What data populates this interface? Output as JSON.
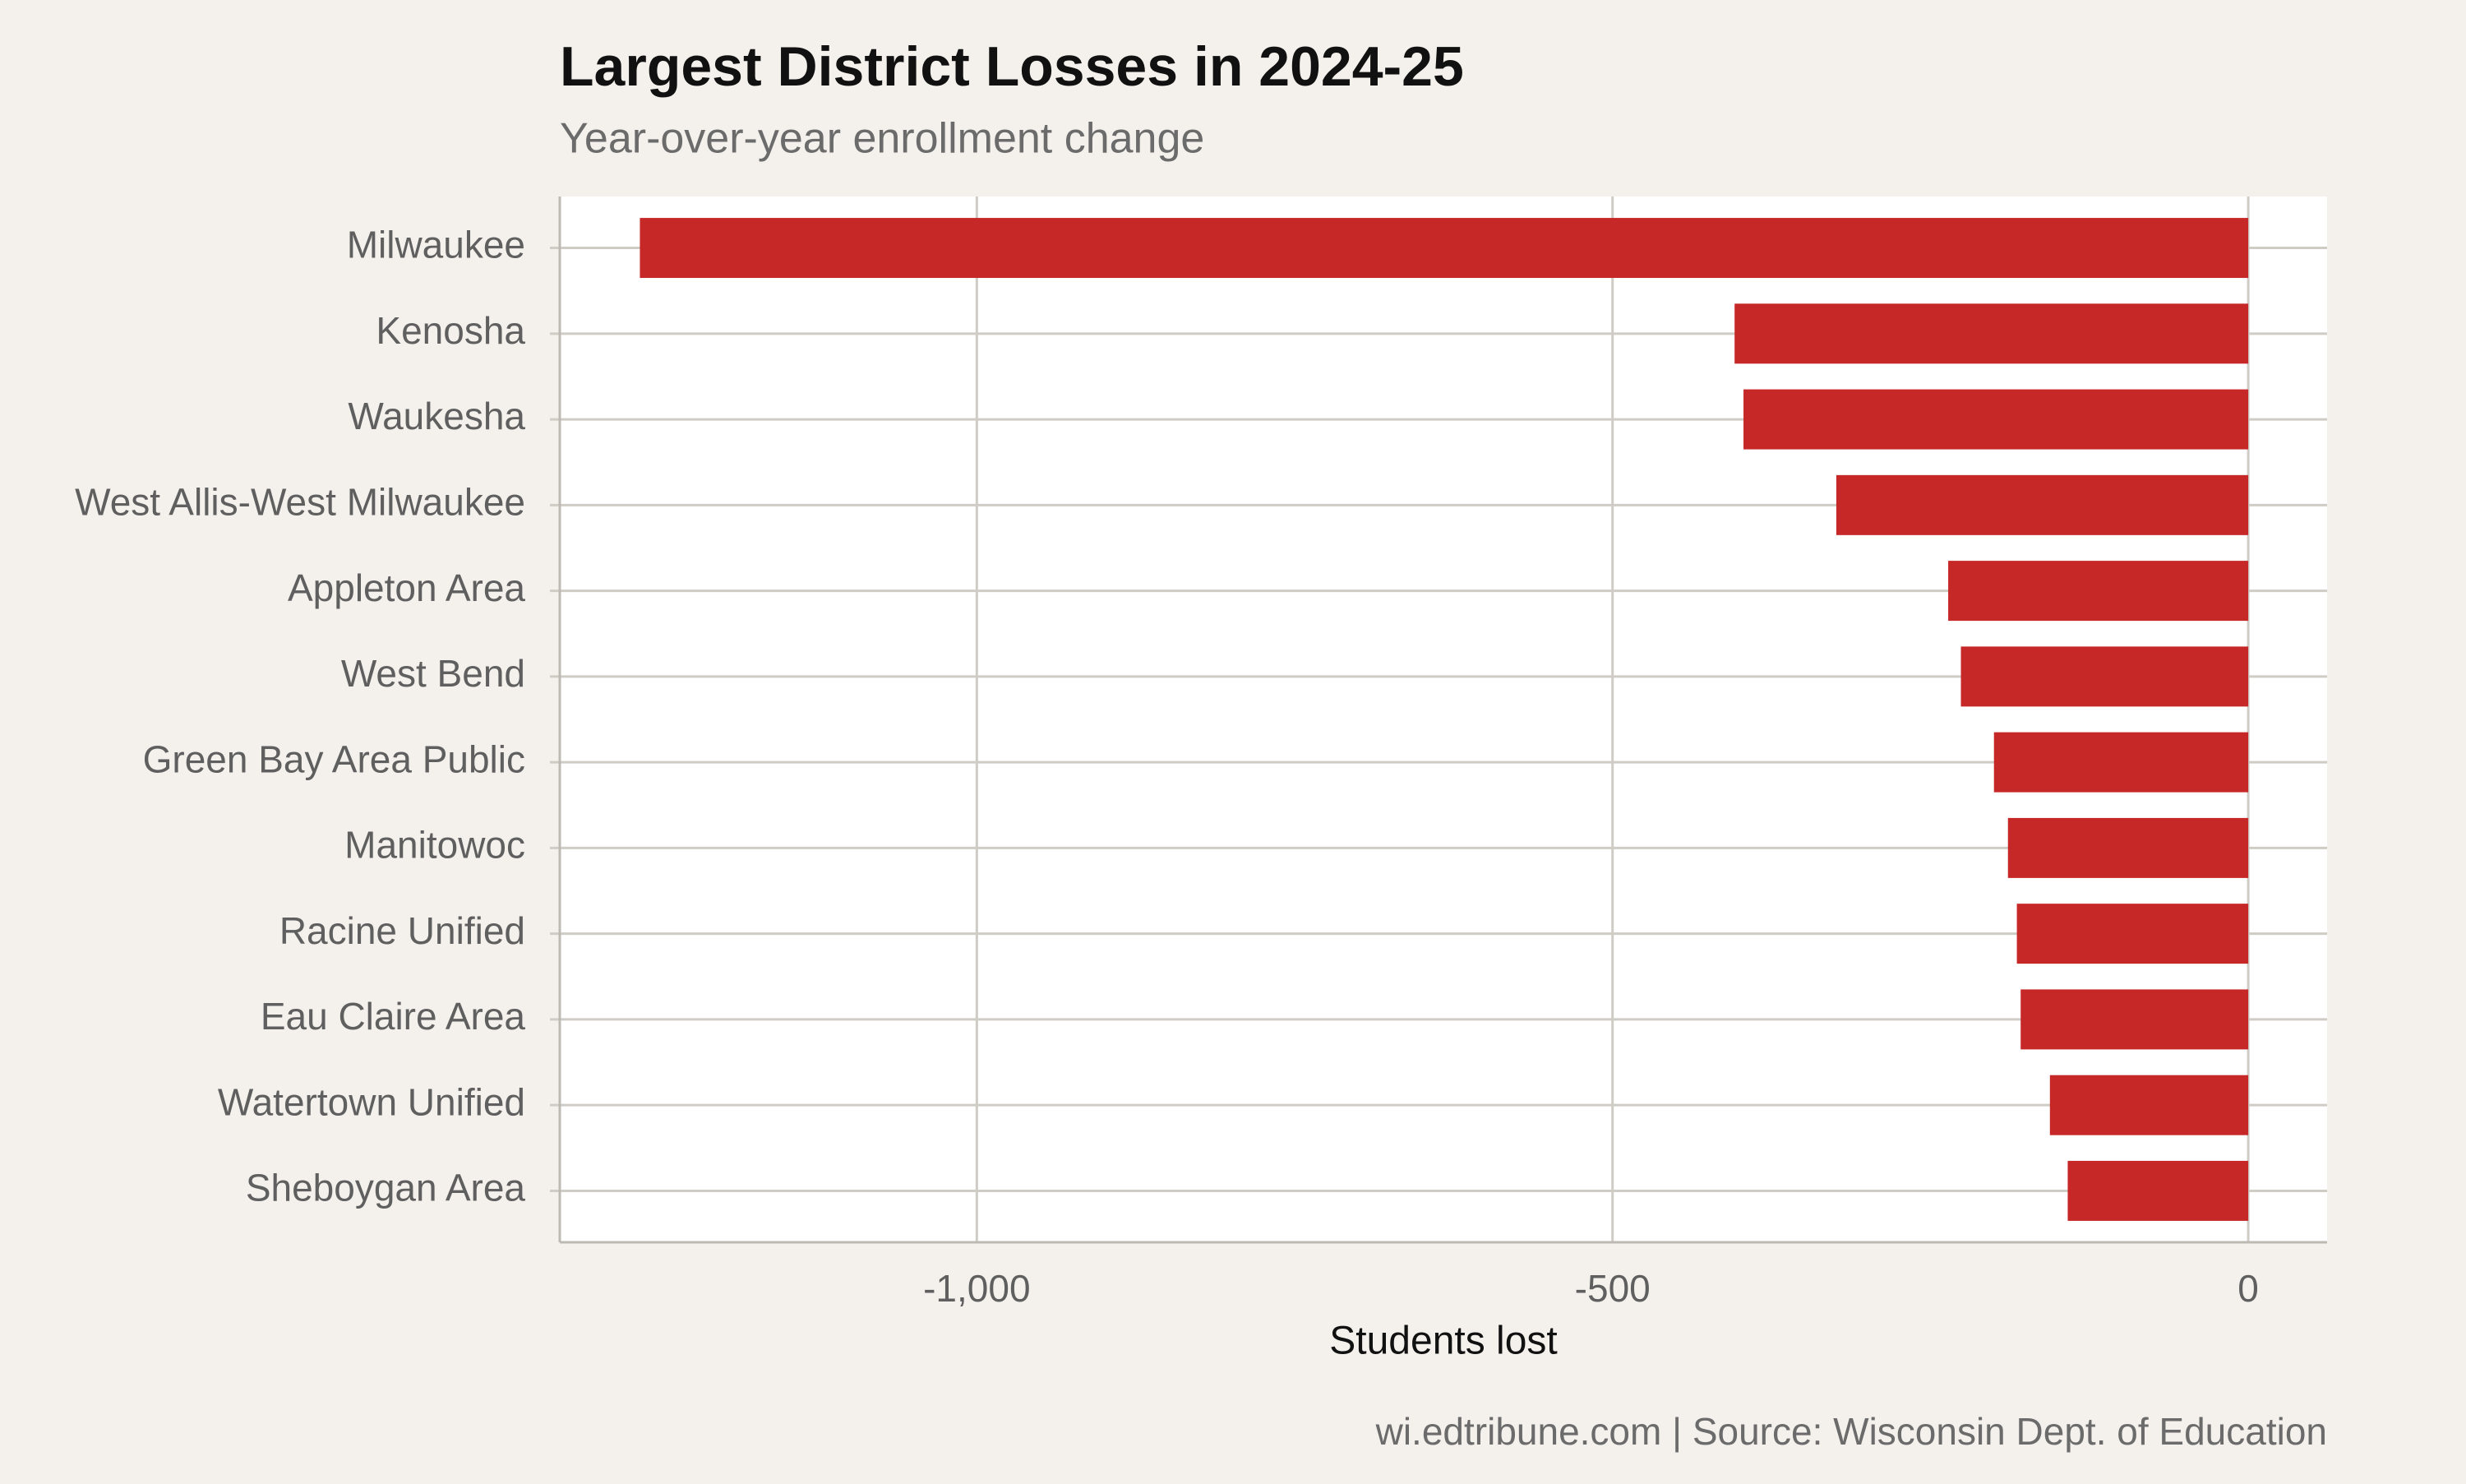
{
  "chart_data": {
    "type": "bar",
    "orientation": "horizontal",
    "title": "Largest District Losses in 2024-25",
    "subtitle": "Year-over-year enrollment change",
    "x_label": "Students lost",
    "caption": "wi.edtribune.com | Source: Wisconsin Dept. of Education",
    "categories": [
      "Milwaukee",
      "Kenosha",
      "Waukesha",
      "West Allis-West Milwaukee",
      "Appleton Area",
      "West Bend",
      "Green Bay Area Public",
      "Manitowoc",
      "Racine Unified",
      "Eau Claire Area",
      "Watertown Unified",
      "Sheboygan Area"
    ],
    "values": [
      -1265,
      -404,
      -397,
      -324,
      -236,
      -226,
      -200,
      -189,
      -182,
      -179,
      -156,
      -142
    ],
    "color": "#c62828",
    "xlim": [
      -1328,
      62
    ],
    "xticks": [
      {
        "value": -1000,
        "label": "-1,000"
      },
      -500,
      0
    ],
    "grid": true
  }
}
